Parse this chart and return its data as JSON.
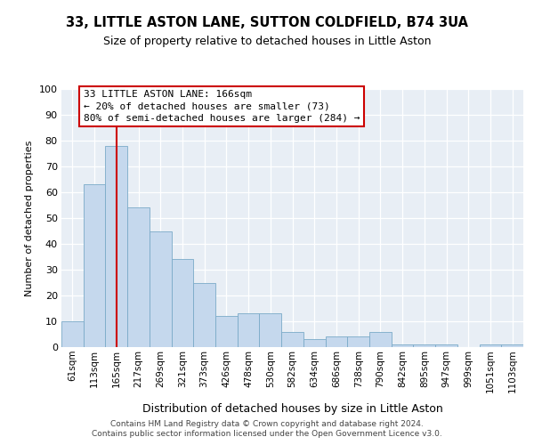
{
  "title1": "33, LITTLE ASTON LANE, SUTTON COLDFIELD, B74 3UA",
  "title2": "Size of property relative to detached houses in Little Aston",
  "xlabel": "Distribution of detached houses by size in Little Aston",
  "ylabel": "Number of detached properties",
  "categories": [
    "61sqm",
    "113sqm",
    "165sqm",
    "217sqm",
    "269sqm",
    "321sqm",
    "373sqm",
    "426sqm",
    "478sqm",
    "530sqm",
    "582sqm",
    "634sqm",
    "686sqm",
    "738sqm",
    "790sqm",
    "842sqm",
    "895sqm",
    "947sqm",
    "999sqm",
    "1051sqm",
    "1103sqm"
  ],
  "values": [
    10,
    63,
    78,
    54,
    45,
    34,
    25,
    12,
    13,
    13,
    6,
    3,
    4,
    4,
    6,
    1,
    1,
    1,
    0,
    1,
    1
  ],
  "bar_color": "#c5d8ed",
  "bar_edge_color": "#7aaac8",
  "highlight_index": 2,
  "highlight_color": "#cc0000",
  "annotation_line1": "33 LITTLE ASTON LANE: 166sqm",
  "annotation_line2": "← 20% of detached houses are smaller (73)",
  "annotation_line3": "80% of semi-detached houses are larger (284) →",
  "annotation_box_facecolor": "#ffffff",
  "annotation_box_edgecolor": "#cc0000",
  "footer1": "Contains HM Land Registry data © Crown copyright and database right 2024.",
  "footer2": "Contains public sector information licensed under the Open Government Licence v3.0.",
  "plot_bg": "#e8eef5",
  "fig_bg": "#ffffff",
  "ylim": [
    0,
    100
  ],
  "yticks": [
    0,
    10,
    20,
    30,
    40,
    50,
    60,
    70,
    80,
    90,
    100
  ],
  "title1_fontsize": 10.5,
  "title2_fontsize": 9,
  "ylabel_fontsize": 8,
  "xlabel_fontsize": 9,
  "tick_fontsize": 8,
  "xtick_fontsize": 7.5,
  "annotation_fontsize": 8,
  "footer_fontsize": 6.5
}
